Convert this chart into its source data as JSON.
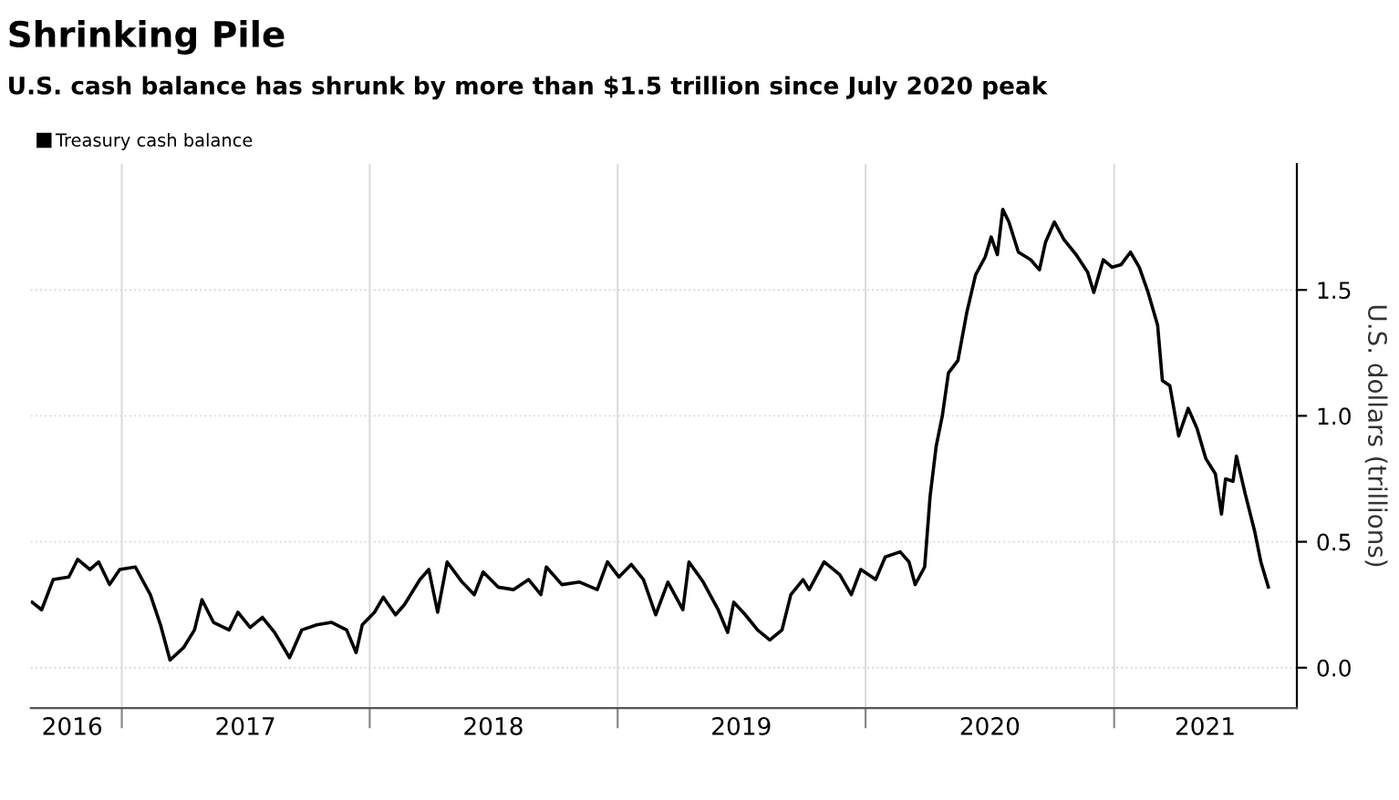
{
  "chart_data": {
    "type": "line",
    "title": "Shrinking Pile",
    "subtitle": "U.S. cash balance has shrunk by more than $1.5 trillion since July 2020 peak",
    "ylabel": "U.S. dollars (trillions)",
    "legend": "top left",
    "grid": true,
    "line_style": "solid",
    "xlim": [
      "2016-08-20",
      "2021-09-27"
    ],
    "ylim": [
      -0.16,
      2.0
    ],
    "xticks": [
      {
        "value": "2017-01-01",
        "label": null
      },
      {
        "value": "2018-01-01",
        "label": null
      },
      {
        "value": "2019-01-01",
        "label": null
      },
      {
        "value": "2020-01-01",
        "label": null
      },
      {
        "value": "2021-01-01",
        "label": null
      },
      {
        "value": "2016-10-20",
        "label": "2016"
      },
      {
        "value": "2017-07-02",
        "label": "2017"
      },
      {
        "value": "2018-07-02",
        "label": "2018"
      },
      {
        "value": "2019-07-02",
        "label": "2019"
      },
      {
        "value": "2020-07-02",
        "label": "2020"
      },
      {
        "value": "2021-05-15",
        "label": "2021"
      }
    ],
    "yticks": [
      {
        "value": 0,
        "label": "0.0"
      },
      0.5,
      {
        "value": 1,
        "label": "1.0"
      },
      1.5
    ],
    "series": [
      {
        "name": "Treasury cash balance",
        "color": "#000000",
        "x": [
          "2016-08-22",
          "2016-09-05",
          "2016-09-22",
          "2016-10-15",
          "2016-10-28",
          "2016-11-15",
          "2016-11-28",
          "2016-12-14",
          "2016-12-29",
          "2017-01-21",
          "2017-02-12",
          "2017-02-27",
          "2017-03-13",
          "2017-04-02",
          "2017-04-18",
          "2017-04-29",
          "2017-05-16",
          "2017-06-08",
          "2017-06-21",
          "2017-07-09",
          "2017-07-27",
          "2017-08-14",
          "2017-09-05",
          "2017-09-23",
          "2017-10-15",
          "2017-11-06",
          "2017-11-28",
          "2017-12-12",
          "2017-12-21",
          "2018-01-08",
          "2018-01-21",
          "2018-02-08",
          "2018-02-21",
          "2018-03-16",
          "2018-03-29",
          "2018-04-11",
          "2018-04-25",
          "2018-05-17",
          "2018-06-04",
          "2018-06-17",
          "2018-07-09",
          "2018-08-01",
          "2018-08-23",
          "2018-09-10",
          "2018-09-18",
          "2018-10-11",
          "2018-11-06",
          "2018-12-02",
          "2018-12-17",
          "2019-01-03",
          "2019-01-21",
          "2019-02-08",
          "2019-02-26",
          "2019-03-16",
          "2019-04-07",
          "2019-04-16",
          "2019-05-07",
          "2019-05-29",
          "2019-06-12",
          "2019-06-21",
          "2019-07-08",
          "2019-07-26",
          "2019-08-13",
          "2019-08-31",
          "2019-09-13",
          "2019-10-01",
          "2019-10-10",
          "2019-11-01",
          "2019-11-24",
          "2019-12-11",
          "2019-12-25",
          "2020-01-16",
          "2020-01-30",
          "2020-02-21",
          "2020-03-05",
          "2020-03-14",
          "2020-03-28",
          "2020-04-05",
          "2020-04-14",
          "2020-04-23",
          "2020-05-02",
          "2020-05-16",
          "2020-05-29",
          "2020-06-11",
          "2020-06-25",
          "2020-07-04",
          "2020-07-13",
          "2020-07-21",
          "2020-07-30",
          "2020-08-13",
          "2020-08-31",
          "2020-09-13",
          "2020-09-22",
          "2020-10-05",
          "2020-10-19",
          "2020-11-06",
          "2020-11-23",
          "2020-12-02",
          "2020-12-16",
          "2020-12-29",
          "2021-01-11",
          "2021-01-25",
          "2021-02-07",
          "2021-02-20",
          "2021-03-06",
          "2021-03-13",
          "2021-03-24",
          "2021-04-06",
          "2021-04-20",
          "2021-05-03",
          "2021-05-16",
          "2021-05-30",
          "2021-06-08",
          "2021-06-14",
          "2021-06-25",
          "2021-06-30",
          "2021-07-13",
          "2021-07-27",
          "2021-08-05",
          "2021-08-16"
        ],
        "values": [
          0.26,
          0.23,
          0.35,
          0.36,
          0.43,
          0.39,
          0.42,
          0.33,
          0.39,
          0.4,
          0.29,
          0.17,
          0.03,
          0.08,
          0.15,
          0.27,
          0.18,
          0.15,
          0.22,
          0.16,
          0.2,
          0.14,
          0.04,
          0.15,
          0.17,
          0.18,
          0.15,
          0.06,
          0.17,
          0.22,
          0.28,
          0.21,
          0.25,
          0.35,
          0.39,
          0.22,
          0.42,
          0.34,
          0.29,
          0.38,
          0.32,
          0.31,
          0.35,
          0.29,
          0.4,
          0.33,
          0.34,
          0.31,
          0.42,
          0.36,
          0.41,
          0.35,
          0.21,
          0.34,
          0.23,
          0.42,
          0.34,
          0.23,
          0.14,
          0.26,
          0.21,
          0.15,
          0.11,
          0.15,
          0.29,
          0.35,
          0.31,
          0.42,
          0.37,
          0.29,
          0.39,
          0.35,
          0.44,
          0.46,
          0.42,
          0.33,
          0.4,
          0.68,
          0.88,
          1.0,
          1.17,
          1.22,
          1.41,
          1.56,
          1.63,
          1.71,
          1.64,
          1.82,
          1.77,
          1.65,
          1.62,
          1.58,
          1.69,
          1.77,
          1.7,
          1.64,
          1.57,
          1.49,
          1.62,
          1.59,
          1.6,
          1.65,
          1.59,
          1.49,
          1.36,
          1.14,
          1.12,
          0.92,
          1.03,
          0.95,
          0.83,
          0.77,
          0.61,
          0.75,
          0.74,
          0.84,
          0.69,
          0.54,
          0.42,
          0.32
        ]
      }
    ]
  }
}
